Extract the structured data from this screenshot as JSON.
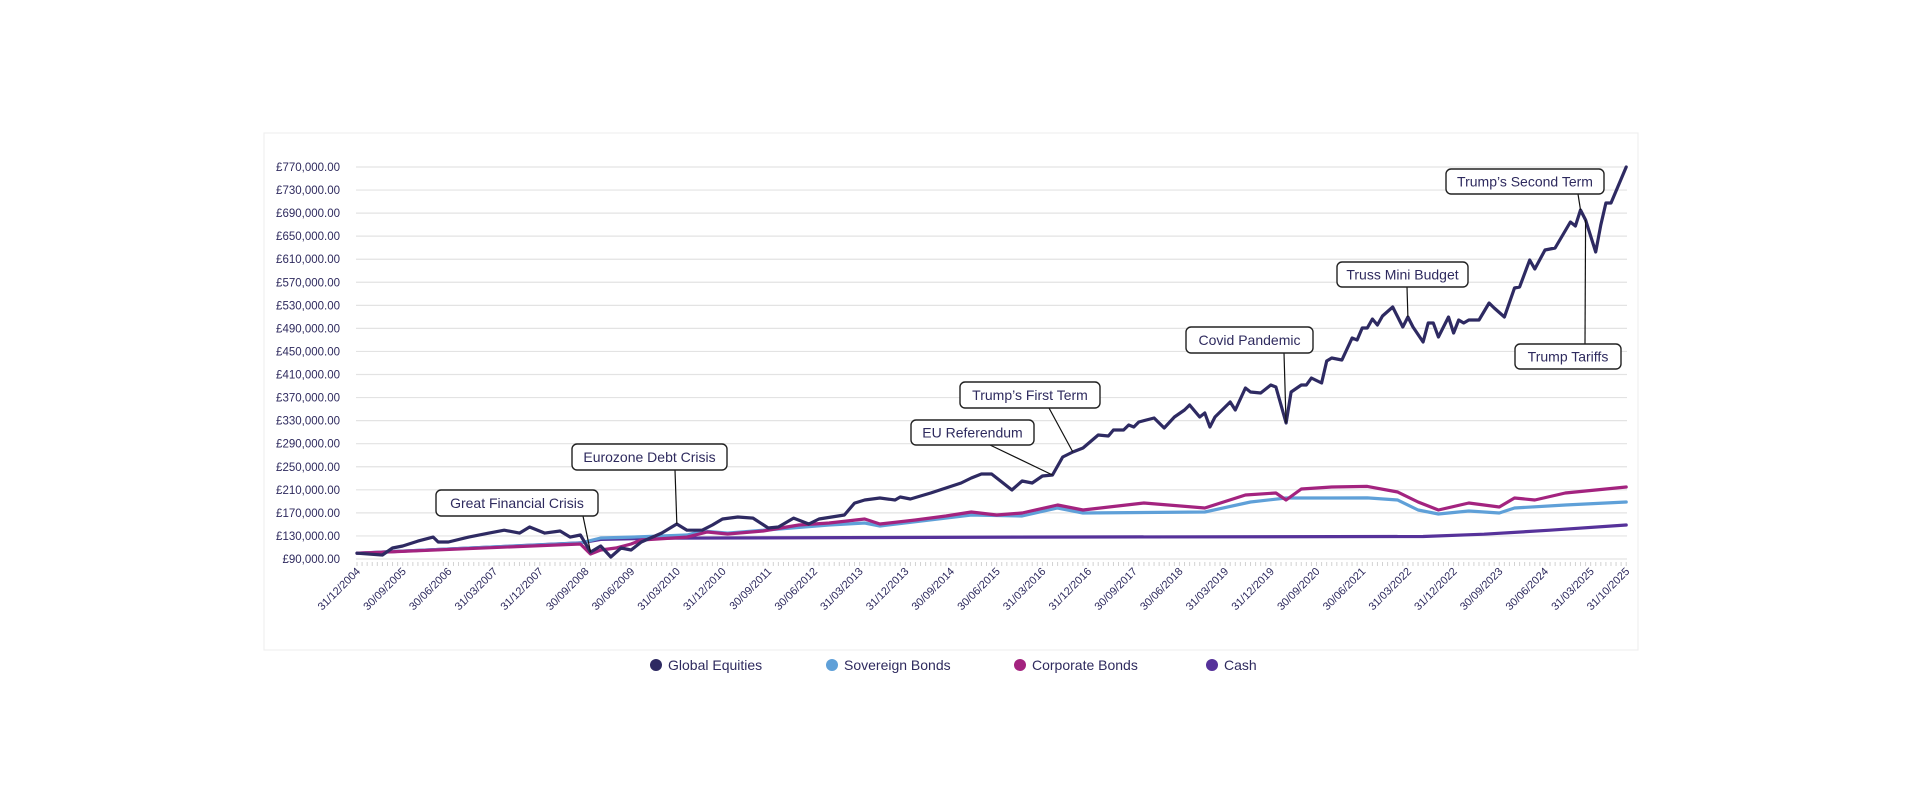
{
  "chart_data": {
    "type": "line",
    "title": "",
    "xlabel": "",
    "ylabel": "",
    "ylim": [
      90000,
      770000
    ],
    "grid": true,
    "legend_position": "bottom",
    "y_ticks": [
      {
        "value": 90000,
        "label": "£90,000.00"
      },
      {
        "value": 130000,
        "label": "£130,000.00"
      },
      {
        "value": 170000,
        "label": "£170,000.00"
      },
      {
        "value": 210000,
        "label": "£210,000.00"
      },
      {
        "value": 250000,
        "label": "£250,000.00"
      },
      {
        "value": 290000,
        "label": "£290,000.00"
      },
      {
        "value": 330000,
        "label": "£330,000.00"
      },
      {
        "value": 370000,
        "label": "£370,000.00"
      },
      {
        "value": 410000,
        "label": "£410,000.00"
      },
      {
        "value": 450000,
        "label": "£450,000.00"
      },
      {
        "value": 490000,
        "label": "£490,000.00"
      },
      {
        "value": 530000,
        "label": "£530,000.00"
      },
      {
        "value": 570000,
        "label": "£570,000.00"
      },
      {
        "value": 610000,
        "label": "£610,000.00"
      },
      {
        "value": 650000,
        "label": "£650,000.00"
      },
      {
        "value": 690000,
        "label": "£690,000.00"
      },
      {
        "value": 730000,
        "label": "£730,000.00"
      },
      {
        "value": 770000,
        "label": "£770,000.00"
      }
    ],
    "x_ticks": [
      {
        "date": "2004-12",
        "label": "31/12/2004"
      },
      {
        "date": "2005-09",
        "label": "30/09/2005"
      },
      {
        "date": "2006-06",
        "label": "30/06/2006"
      },
      {
        "date": "2007-03",
        "label": "31/03/2007"
      },
      {
        "date": "2007-12",
        "label": "31/12/2007"
      },
      {
        "date": "2008-09",
        "label": "30/09/2008"
      },
      {
        "date": "2009-06",
        "label": "30/06/2009"
      },
      {
        "date": "2010-03",
        "label": "31/03/2010"
      },
      {
        "date": "2010-12",
        "label": "31/12/2010"
      },
      {
        "date": "2011-09",
        "label": "30/09/2011"
      },
      {
        "date": "2012-06",
        "label": "30/06/2012"
      },
      {
        "date": "2013-03",
        "label": "31/03/2013"
      },
      {
        "date": "2013-12",
        "label": "31/12/2013"
      },
      {
        "date": "2014-09",
        "label": "30/09/2014"
      },
      {
        "date": "2015-06",
        "label": "30/06/2015"
      },
      {
        "date": "2016-03",
        "label": "31/03/2016"
      },
      {
        "date": "2016-12",
        "label": "31/12/2016"
      },
      {
        "date": "2017-09",
        "label": "30/09/2017"
      },
      {
        "date": "2018-06",
        "label": "30/06/2018"
      },
      {
        "date": "2019-03",
        "label": "31/03/2019"
      },
      {
        "date": "2019-12",
        "label": "31/12/2019"
      },
      {
        "date": "2020-09",
        "label": "30/09/2020"
      },
      {
        "date": "2021-06",
        "label": "30/06/2021"
      },
      {
        "date": "2022-03",
        "label": "31/03/2022"
      },
      {
        "date": "2022-12",
        "label": "31/12/2022"
      },
      {
        "date": "2023-09",
        "label": "30/09/2023"
      },
      {
        "date": "2024-06",
        "label": "30/06/2024"
      },
      {
        "date": "2025-03",
        "label": "31/03/2025"
      },
      {
        "date": "2025-10",
        "label": "31/10/2025"
      }
    ],
    "series": [
      {
        "name": "Cash",
        "color": "#56329a",
        "points": [
          [
            "2004-12",
            100000
          ],
          [
            "2008-08",
            118000
          ],
          [
            "2008-12",
            124000
          ],
          [
            "2009-12",
            126000
          ],
          [
            "2015-10",
            128000
          ],
          [
            "2022-06",
            129000
          ],
          [
            "2023-06",
            133000
          ],
          [
            "2024-07",
            140000
          ],
          [
            "2025-10",
            149000
          ]
        ]
      },
      {
        "name": "Sovereign Bonds",
        "color": "#5fa0d8",
        "points": [
          [
            "2004-12",
            100000
          ],
          [
            "2008-08",
            117700
          ],
          [
            "2008-12",
            126400
          ],
          [
            "2009-06",
            128000
          ],
          [
            "2010-05",
            131600
          ],
          [
            "2010-08",
            138600
          ],
          [
            "2011-01",
            135000
          ],
          [
            "2012-09",
            149000
          ],
          [
            "2013-04",
            152400
          ],
          [
            "2013-07",
            147200
          ],
          [
            "2015-01",
            166300
          ],
          [
            "2015-11",
            164600
          ],
          [
            "2016-06",
            178500
          ],
          [
            "2016-11",
            169800
          ],
          [
            "2018-11",
            171500
          ],
          [
            "2019-08",
            188900
          ],
          [
            "2020-03",
            195800
          ],
          [
            "2020-12",
            195800
          ],
          [
            "2021-07",
            196000
          ],
          [
            "2022-01",
            192300
          ],
          [
            "2022-05",
            175000
          ],
          [
            "2022-09",
            168000
          ],
          [
            "2023-03",
            173300
          ],
          [
            "2023-09",
            169800
          ],
          [
            "2023-12",
            178500
          ],
          [
            "2024-10",
            183700
          ],
          [
            "2025-10",
            188900
          ]
        ]
      },
      {
        "name": "Corporate Bonds",
        "color": "#a3237f",
        "points": [
          [
            "2004-12",
            100000
          ],
          [
            "2008-08",
            116000
          ],
          [
            "2008-10",
            98700
          ],
          [
            "2008-12",
            105600
          ],
          [
            "2009-03",
            109000
          ],
          [
            "2009-06",
            116000
          ],
          [
            "2009-08",
            123000
          ],
          [
            "2010-05",
            128000
          ],
          [
            "2010-09",
            136800
          ],
          [
            "2011-01",
            133400
          ],
          [
            "2011-08",
            138600
          ],
          [
            "2012-03",
            149000
          ],
          [
            "2012-09",
            152400
          ],
          [
            "2013-04",
            159400
          ],
          [
            "2013-07",
            150700
          ],
          [
            "2014-02",
            157600
          ],
          [
            "2014-08",
            164600
          ],
          [
            "2015-01",
            171500
          ],
          [
            "2015-06",
            166300
          ],
          [
            "2015-11",
            169800
          ],
          [
            "2016-06",
            183700
          ],
          [
            "2016-11",
            175000
          ],
          [
            "2017-11",
            187100
          ],
          [
            "2018-11",
            178500
          ],
          [
            "2019-07",
            201000
          ],
          [
            "2020-01",
            204500
          ],
          [
            "2020-03",
            192300
          ],
          [
            "2020-06",
            211400
          ],
          [
            "2020-12",
            214900
          ],
          [
            "2021-07",
            216000
          ],
          [
            "2022-01",
            206200
          ],
          [
            "2022-05",
            188900
          ],
          [
            "2022-09",
            175000
          ],
          [
            "2023-03",
            187100
          ],
          [
            "2023-09",
            180200
          ],
          [
            "2023-12",
            195800
          ],
          [
            "2024-04",
            192300
          ],
          [
            "2024-10",
            204500
          ],
          [
            "2025-10",
            214900
          ]
        ]
      },
      {
        "name": "Global Equities",
        "color": "#2e2a62",
        "points": [
          [
            "2004-12",
            100000
          ],
          [
            "2005-05",
            97000
          ],
          [
            "2005-07",
            109000
          ],
          [
            "2005-09",
            112500
          ],
          [
            "2005-12",
            121000
          ],
          [
            "2006-03",
            128000
          ],
          [
            "2006-04",
            119500
          ],
          [
            "2006-06",
            119500
          ],
          [
            "2006-10",
            128000
          ],
          [
            "2007-02",
            135000
          ],
          [
            "2007-05",
            140000
          ],
          [
            "2007-08",
            135000
          ],
          [
            "2007-10",
            145500
          ],
          [
            "2008-01",
            135000
          ],
          [
            "2008-04",
            138600
          ],
          [
            "2008-06",
            128000
          ],
          [
            "2008-08",
            131600
          ],
          [
            "2008-10",
            102000
          ],
          [
            "2008-12",
            112500
          ],
          [
            "2009-02",
            93500
          ],
          [
            "2009-04",
            109000
          ],
          [
            "2009-06",
            105600
          ],
          [
            "2009-08",
            119500
          ],
          [
            "2009-12",
            135000
          ],
          [
            "2010-03",
            150700
          ],
          [
            "2010-05",
            140000
          ],
          [
            "2010-08",
            140000
          ],
          [
            "2010-10",
            149000
          ],
          [
            "2010-12",
            159400
          ],
          [
            "2011-03",
            162900
          ],
          [
            "2011-06",
            161000
          ],
          [
            "2011-09",
            143800
          ],
          [
            "2011-11",
            145500
          ],
          [
            "2012-02",
            161000
          ],
          [
            "2012-05",
            150700
          ],
          [
            "2012-07",
            159400
          ],
          [
            "2012-12",
            166300
          ],
          [
            "2013-02",
            187000
          ],
          [
            "2013-04",
            192300
          ],
          [
            "2013-07",
            195800
          ],
          [
            "2013-10",
            192300
          ],
          [
            "2013-11",
            197500
          ],
          [
            "2014-01",
            194000
          ],
          [
            "2014-03",
            199300
          ],
          [
            "2014-05",
            204500
          ],
          [
            "2014-08",
            213200
          ],
          [
            "2014-11",
            221800
          ],
          [
            "2015-01",
            230500
          ],
          [
            "2015-03",
            237400
          ],
          [
            "2015-05",
            237400
          ],
          [
            "2015-07",
            223600
          ],
          [
            "2015-09",
            209700
          ],
          [
            "2015-11",
            225300
          ],
          [
            "2016-01",
            221800
          ],
          [
            "2016-03",
            234000
          ],
          [
            "2016-05",
            235700
          ],
          [
            "2016-07",
            266900
          ],
          [
            "2016-09",
            275600
          ],
          [
            "2016-11",
            282500
          ],
          [
            "2017-02",
            305100
          ],
          [
            "2017-04",
            303400
          ],
          [
            "2017-05",
            313800
          ],
          [
            "2017-07",
            313800
          ],
          [
            "2017-08",
            322400
          ],
          [
            "2017-09",
            319000
          ],
          [
            "2017-10",
            327600
          ],
          [
            "2018-01",
            334600
          ],
          [
            "2018-03",
            317200
          ],
          [
            "2018-05",
            336300
          ],
          [
            "2018-07",
            348500
          ],
          [
            "2018-08",
            357100
          ],
          [
            "2018-10",
            336300
          ],
          [
            "2018-11",
            343200
          ],
          [
            "2018-12",
            319000
          ],
          [
            "2019-01",
            336300
          ],
          [
            "2019-04",
            362300
          ],
          [
            "2019-05",
            348500
          ],
          [
            "2019-07",
            386600
          ],
          [
            "2019-08",
            379700
          ],
          [
            "2019-10",
            378000
          ],
          [
            "2019-12",
            391800
          ],
          [
            "2020-01",
            388400
          ],
          [
            "2020-03",
            325900
          ],
          [
            "2020-04",
            379700
          ],
          [
            "2020-06",
            391800
          ],
          [
            "2020-07",
            391800
          ],
          [
            "2020-08",
            404000
          ],
          [
            "2020-10",
            395300
          ],
          [
            "2020-11",
            433500
          ],
          [
            "2020-12",
            438700
          ],
          [
            "2021-02",
            435200
          ],
          [
            "2021-04",
            473300
          ],
          [
            "2021-05",
            469900
          ],
          [
            "2021-06",
            490700
          ],
          [
            "2021-07",
            490700
          ],
          [
            "2021-08",
            506300
          ],
          [
            "2021-09",
            495900
          ],
          [
            "2021-10",
            511500
          ],
          [
            "2021-12",
            527100
          ],
          [
            "2022-02",
            492400
          ],
          [
            "2022-03",
            509800
          ],
          [
            "2022-04",
            492400
          ],
          [
            "2022-06",
            466400
          ],
          [
            "2022-07",
            499400
          ],
          [
            "2022-08",
            499400
          ],
          [
            "2022-09",
            475100
          ],
          [
            "2022-11",
            509800
          ],
          [
            "2022-12",
            482000
          ],
          [
            "2023-01",
            504600
          ],
          [
            "2023-02",
            499400
          ],
          [
            "2023-03",
            504600
          ],
          [
            "2023-05",
            504600
          ],
          [
            "2023-07",
            534000
          ],
          [
            "2023-08",
            525400
          ],
          [
            "2023-10",
            509800
          ],
          [
            "2023-12",
            560000
          ],
          [
            "2024-01",
            561800
          ],
          [
            "2024-03",
            608600
          ],
          [
            "2024-04",
            593000
          ],
          [
            "2024-06",
            626000
          ],
          [
            "2024-08",
            629500
          ],
          [
            "2024-11",
            674600
          ],
          [
            "2024-12",
            667700
          ],
          [
            "2025-01",
            695400
          ],
          [
            "2025-02",
            678000
          ],
          [
            "2025-04",
            622500
          ],
          [
            "2025-05",
            669400
          ],
          [
            "2025-06",
            707500
          ],
          [
            "2025-07",
            707500
          ],
          [
            "2025-10",
            770000
          ]
        ]
      }
    ],
    "legend": [
      {
        "label": "Global Equities",
        "color": "#2e2a62"
      },
      {
        "label": "Sovereign Bonds",
        "color": "#5fa0d8"
      },
      {
        "label": "Corporate Bonds",
        "color": "#a3237f"
      },
      {
        "label": "Cash",
        "color": "#56329a"
      }
    ],
    "annotations": [
      {
        "label": "Great Financial Crisis",
        "date": "2008-10"
      },
      {
        "label": "Eurozone Debt Crisis",
        "date": "2010-03"
      },
      {
        "label": "EU Referendum",
        "date": "2016-05"
      },
      {
        "label": "Trump’s First Term",
        "date": "2016-09"
      },
      {
        "label": "Covid Pandemic",
        "date": "2020-03"
      },
      {
        "label": "Truss Mini Budget",
        "date": "2022-03"
      },
      {
        "label": "Trump’s Second Term",
        "date": "2025-01"
      },
      {
        "label": "Trump Tariffs",
        "date": "2025-02"
      }
    ]
  }
}
